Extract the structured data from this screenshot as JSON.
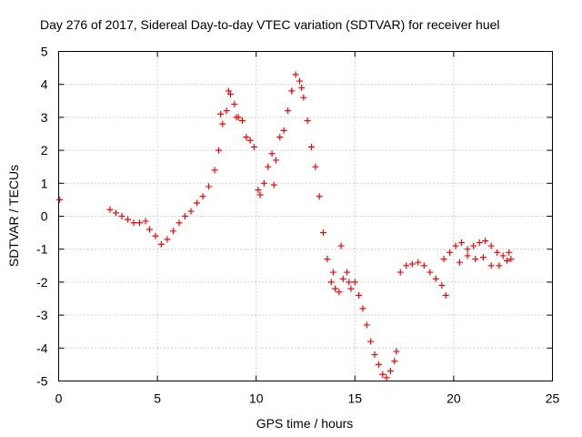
{
  "chart_data": {
    "type": "scatter",
    "title": "Day 276 of 2017, Sidereal Day-to-day VTEC variation (SDTVAR) for receiver huel",
    "xlabel": "GPS time / hours",
    "ylabel": "SDTVAR / TECUs",
    "xlim": [
      0,
      25
    ],
    "ylim": [
      -5,
      5
    ],
    "xticks": [
      0,
      5,
      10,
      15,
      20,
      25
    ],
    "yticks": [
      -5,
      -4,
      -3,
      -2,
      -1,
      0,
      1,
      2,
      3,
      4,
      5
    ],
    "grid": true,
    "marker": "plus",
    "color": "#ff0000",
    "series": [
      {
        "x": [
          0.05,
          2.6,
          2.9,
          3.2,
          3.5,
          3.8,
          4.1,
          4.4,
          4.6,
          4.9,
          5.2,
          5.5,
          5.8,
          6.1,
          6.4,
          6.7,
          7.0,
          7.3,
          7.6,
          7.9,
          8.1,
          8.3,
          8.5,
          8.7,
          8.9,
          9.1,
          9.3,
          9.5,
          9.7,
          9.9,
          10.1,
          10.2,
          10.4,
          10.6,
          10.8,
          11.0,
          11.2,
          11.4,
          11.6,
          11.8,
          12.0,
          12.2,
          12.4,
          12.6,
          12.8,
          13.0,
          13.2,
          13.4,
          13.6,
          13.8,
          14.0,
          14.2,
          14.4,
          14.6,
          14.8,
          15.0,
          15.2,
          15.4,
          15.6,
          15.8,
          16.0,
          16.2,
          16.4,
          16.6,
          16.8,
          17.0,
          17.1,
          17.3,
          17.6,
          17.9,
          18.2,
          18.5,
          18.8,
          19.1,
          19.4,
          19.6,
          19.5,
          19.8,
          20.1,
          20.4,
          20.7,
          21.0,
          21.3,
          21.6,
          21.9,
          22.2,
          22.5,
          22.8,
          20.3,
          20.7,
          21.1,
          21.5,
          21.9,
          22.3,
          22.7,
          22.9,
          13.9,
          14.3,
          14.7,
          8.2,
          8.6,
          9.0,
          11.8,
          12.3,
          10.9
        ],
        "y": [
          0.5,
          0.2,
          0.1,
          0.0,
          -0.1,
          -0.2,
          -0.2,
          -0.15,
          -0.4,
          -0.6,
          -0.85,
          -0.7,
          -0.45,
          -0.2,
          0.0,
          0.15,
          0.4,
          0.6,
          0.9,
          1.4,
          2.0,
          2.8,
          3.2,
          3.7,
          3.4,
          3.0,
          2.9,
          2.4,
          2.3,
          2.1,
          0.8,
          0.65,
          1.0,
          1.5,
          1.9,
          1.7,
          2.4,
          2.6,
          3.2,
          3.8,
          4.3,
          4.1,
          3.6,
          2.9,
          2.1,
          1.5,
          0.6,
          -0.5,
          -1.3,
          -2.0,
          -2.2,
          -2.3,
          -1.9,
          -1.7,
          -2.2,
          -2.0,
          -2.4,
          -2.8,
          -3.3,
          -3.8,
          -4.2,
          -4.5,
          -4.8,
          -4.9,
          -4.7,
          -4.4,
          -4.1,
          -1.7,
          -1.5,
          -1.45,
          -1.4,
          -1.5,
          -1.7,
          -1.9,
          -2.1,
          -2.4,
          -1.3,
          -1.1,
          -0.9,
          -0.8,
          -1.0,
          -0.9,
          -0.8,
          -0.75,
          -0.9,
          -1.1,
          -1.2,
          -1.1,
          -1.4,
          -1.2,
          -1.3,
          -1.25,
          -1.5,
          -1.5,
          -1.35,
          -1.3,
          -1.7,
          -0.9,
          -2.0,
          3.1,
          3.8,
          3.0,
          3.8,
          3.9,
          0.95
        ]
      }
    ]
  }
}
